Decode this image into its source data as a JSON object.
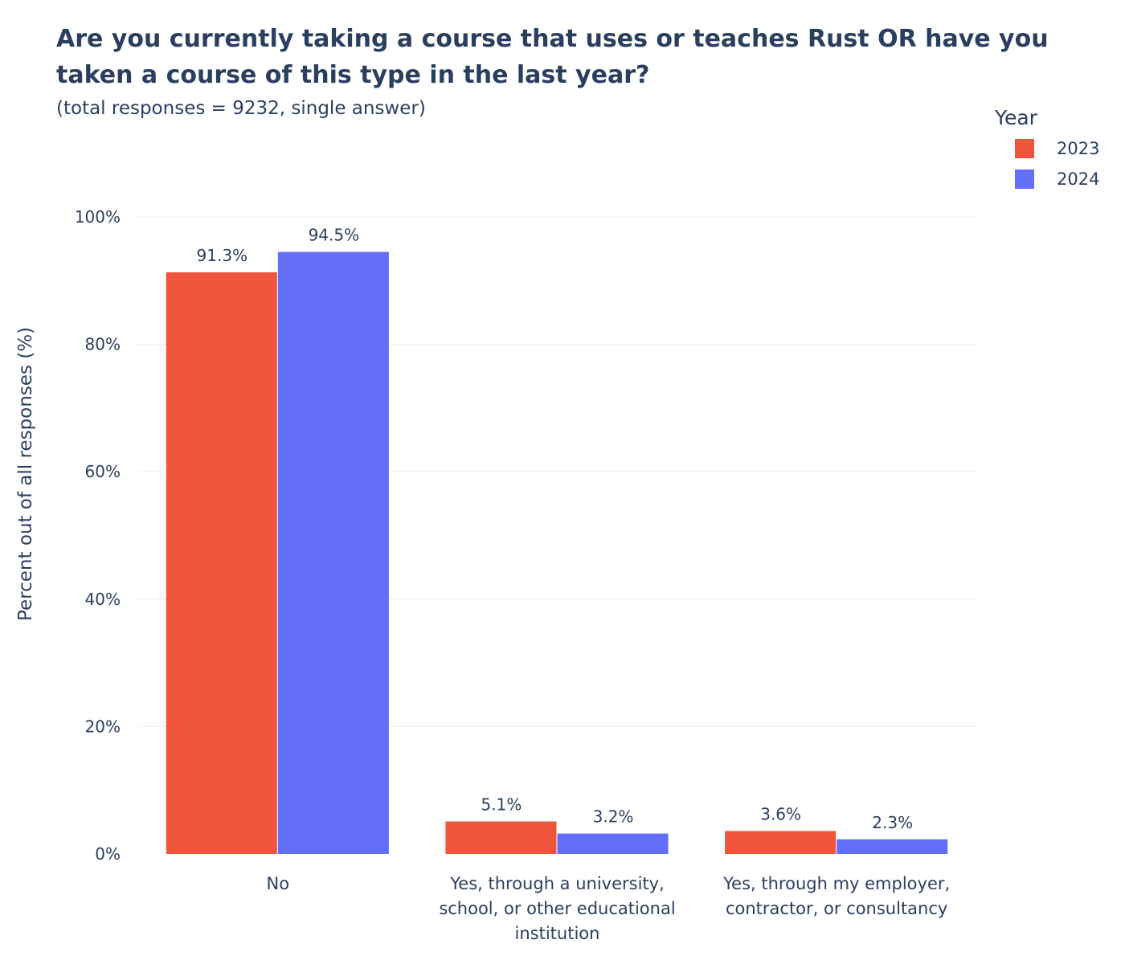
{
  "title": "Are you currently taking a course that uses or teaches Rust OR have you taken a course of this type in the last year?",
  "subtitle": "(total responses = 9232, single answer)",
  "legend": {
    "title": "Year",
    "placement": "top-right"
  },
  "chart_data": {
    "type": "bar",
    "categories": [
      "No",
      "Yes, through a university, school, or other educational institution",
      "Yes, through my employer, contractor, or consultancy"
    ],
    "series": [
      {
        "name": "2023",
        "color": "#ef553b",
        "values": [
          91.3,
          5.1,
          3.6
        ],
        "labels": [
          "91.3%",
          "5.1%",
          "3.6%"
        ]
      },
      {
        "name": "2024",
        "color": "#636efa",
        "values": [
          94.5,
          3.2,
          2.3
        ],
        "labels": [
          "94.5%",
          "3.2%",
          "2.3%"
        ]
      }
    ],
    "ylabel": "Percent out of all responses (%)",
    "xlabel": "",
    "ylim": [
      0,
      100
    ],
    "yticks": [
      0,
      20,
      40,
      60,
      80,
      100
    ],
    "ytick_labels": [
      "0%",
      "20%",
      "40%",
      "60%",
      "80%",
      "100%"
    ],
    "grid": true
  }
}
